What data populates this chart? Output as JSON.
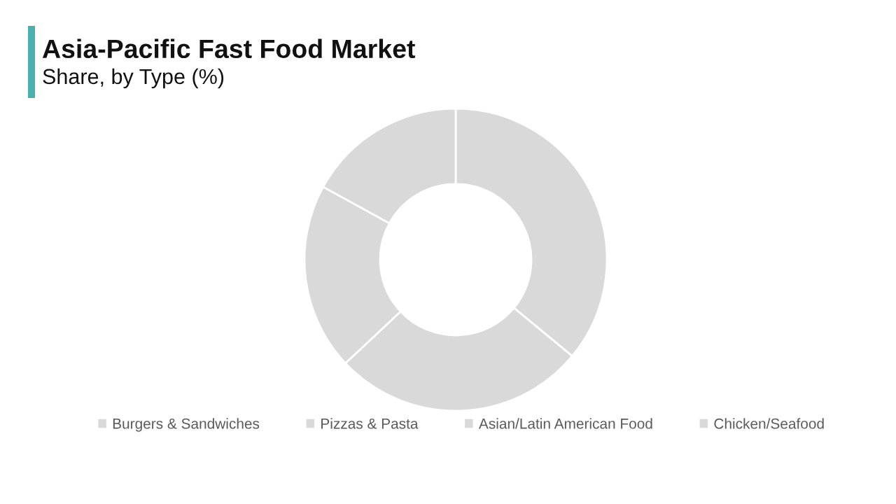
{
  "chart_data": {
    "type": "donut",
    "title": "Asia-Pacific Fast Food Market",
    "subtitle": "Share, by Type (%)",
    "categories": [
      "Burgers & Sandwiches",
      "Pizzas & Pasta",
      "Asian/Latin American Food",
      "Chicken/Seafood"
    ],
    "values": [
      36,
      27,
      20,
      17
    ],
    "colors": [
      "#d9d9d9",
      "#d9d9d9",
      "#d9d9d9",
      "#d9d9d9"
    ],
    "legend": "bottom"
  }
}
